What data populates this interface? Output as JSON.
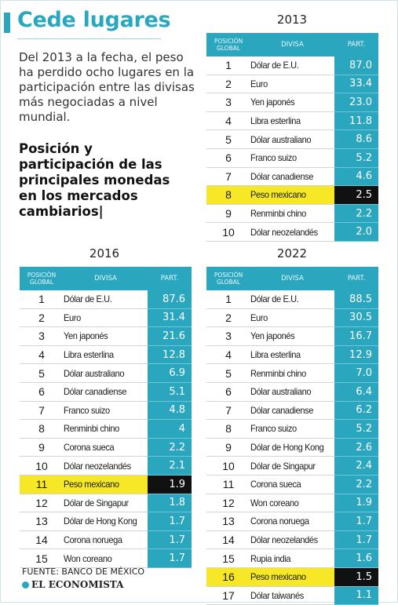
{
  "title": "Cede lugares",
  "intro": "Del 2013 a la fecha, el peso ha perdido ocho lugares en la participación entre las divisas más negociadas a nivel mundial.",
  "subhead": "Posición y participación de las principales monedas en los mercados cambiarios|",
  "header": {
    "pos_line1": "POSICIÓN",
    "pos_line2": "GLOBAL",
    "divisa": "DIVISA",
    "part": "PART."
  },
  "colors": {
    "accent": "#2aa7bf",
    "highlight": "#f6e827",
    "highlight_value": "#111111"
  },
  "tables": [
    {
      "year": "2013",
      "rows": [
        {
          "pos": "1",
          "name": "Dólar de E.U.",
          "part": "87.0"
        },
        {
          "pos": "2",
          "name": "Euro",
          "part": "33.4"
        },
        {
          "pos": "3",
          "name": "Yen japonés",
          "part": "23.0"
        },
        {
          "pos": "4",
          "name": "Libra esterlina",
          "part": "11.8"
        },
        {
          "pos": "5",
          "name": "Dólar australiano",
          "part": "8.6"
        },
        {
          "pos": "6",
          "name": "Franco suizo",
          "part": "5.2"
        },
        {
          "pos": "7",
          "name": "Dólar canadiense",
          "part": "4.6"
        },
        {
          "pos": "8",
          "name": "Peso mexicano",
          "part": "2.5",
          "highlight": true
        },
        {
          "pos": "9",
          "name": "Renminbi chino",
          "part": "2.2"
        },
        {
          "pos": "10",
          "name": "Dólar neozelandés",
          "part": "2.0"
        }
      ]
    },
    {
      "year": "2016",
      "rows": [
        {
          "pos": "1",
          "name": "Dólar de E.U.",
          "part": "87.6"
        },
        {
          "pos": "2",
          "name": "Euro",
          "part": "31.4"
        },
        {
          "pos": "3",
          "name": "Yen japonés",
          "part": "21.6"
        },
        {
          "pos": "4",
          "name": "Libra esterlina",
          "part": "12.8"
        },
        {
          "pos": "5",
          "name": "Dólar australiano",
          "part": "6.9"
        },
        {
          "pos": "6",
          "name": "Dólar canadiense",
          "part": "5.1"
        },
        {
          "pos": "7",
          "name": "Franco suizo",
          "part": "4.8"
        },
        {
          "pos": "8",
          "name": "Renminbi chino",
          "part": "4"
        },
        {
          "pos": "9",
          "name": "Corona sueca",
          "part": "2.2"
        },
        {
          "pos": "10",
          "name": "Dólar neozelandés",
          "part": "2.1"
        },
        {
          "pos": "11",
          "name": "Peso mexicano",
          "part": "1.9",
          "highlight": true
        },
        {
          "pos": "12",
          "name": "Dólar de Singapur",
          "part": "1.8"
        },
        {
          "pos": "13",
          "name": "Dólar de Hong Kong",
          "part": "1.7"
        },
        {
          "pos": "14",
          "name": "Corona noruega",
          "part": "1.7"
        },
        {
          "pos": "15",
          "name": "Won coreano",
          "part": "1.7"
        }
      ]
    },
    {
      "year": "2022",
      "rows": [
        {
          "pos": "1",
          "name": "Dólar de E.U.",
          "part": "88.5"
        },
        {
          "pos": "2",
          "name": "Euro",
          "part": "30.5"
        },
        {
          "pos": "3",
          "name": "Yen japonés",
          "part": "16.7"
        },
        {
          "pos": "4",
          "name": "Libra esterlina",
          "part": "12.9"
        },
        {
          "pos": "5",
          "name": "Renminbi chino",
          "part": "7.0"
        },
        {
          "pos": "6",
          "name": "Dólar australiano",
          "part": "6.4"
        },
        {
          "pos": "7",
          "name": "Dólar canadiense",
          "part": "6.2"
        },
        {
          "pos": "8",
          "name": "Franco suizo",
          "part": "5.2"
        },
        {
          "pos": "9",
          "name": "Dólar de Hong Kong",
          "part": "2.6"
        },
        {
          "pos": "10",
          "name": "Dólar de Singapur",
          "part": "2.4"
        },
        {
          "pos": "11",
          "name": "Corona sueca",
          "part": "2.2"
        },
        {
          "pos": "12",
          "name": "Won coreano",
          "part": "1.9"
        },
        {
          "pos": "13",
          "name": "Corona noruega",
          "part": "1.7"
        },
        {
          "pos": "14",
          "name": "Dólar neozelandés",
          "part": "1.7"
        },
        {
          "pos": "15",
          "name": "Rupia india",
          "part": "1.6"
        },
        {
          "pos": "16",
          "name": "Peso mexicano",
          "part": "1.5",
          "highlight": true
        },
        {
          "pos": "17",
          "name": "Dólar taiwanés",
          "part": "1.1"
        }
      ]
    }
  ],
  "source": "FUENTE: BANCO DE MÉXICO",
  "brand": "EL ECONOMISTA",
  "brand_icon": "globe-icon"
}
